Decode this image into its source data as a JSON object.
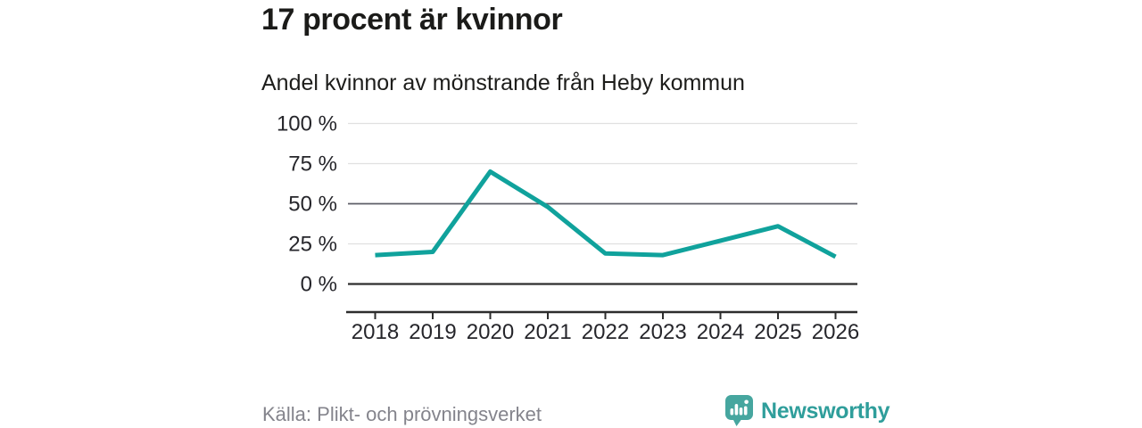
{
  "header": {
    "title": "17 procent är kvinnor",
    "subtitle": "Andel kvinnor av mönstrande från Heby kommun"
  },
  "chart_data": {
    "type": "line",
    "title": "17 procent är kvinnor",
    "subtitle": "Andel kvinnor av mönstrande från Heby kommun",
    "categories": [
      "2018",
      "2019",
      "2020",
      "2021",
      "2022",
      "2023",
      "2024",
      "2025",
      "2026"
    ],
    "series": [
      {
        "name": "Andel kvinnor av mönstrande",
        "values": [
          18,
          20,
          70,
          48,
          19,
          18,
          27,
          36,
          17
        ]
      }
    ],
    "unit": "%",
    "ylim": [
      0,
      100
    ],
    "yticks": [
      0,
      25,
      50,
      75,
      100
    ],
    "ytick_labels": [
      "0 %",
      "25 %",
      "50 %",
      "75 %",
      "100 %"
    ],
    "ytick_styles": [
      "axis",
      "light",
      "emphasis",
      "light",
      "light"
    ],
    "grid": true,
    "legend": "none",
    "line_color": "#10a29c"
  },
  "footer": {
    "source": "Källa: Plikt- och prövningsverket",
    "brand": "Newsworthy"
  },
  "colors": {
    "accent_teal": "#10a29c",
    "brand_teal": "#2f9e9b",
    "logo_icon_teal": "#46a69f",
    "grid_light": "#e0e0e0",
    "grid_emphasis": "#5c5e66",
    "axis_dark": "#2d2d2d",
    "title_text": "#1b1b19",
    "source_text": "#84848c",
    "background": "#ffffff"
  }
}
